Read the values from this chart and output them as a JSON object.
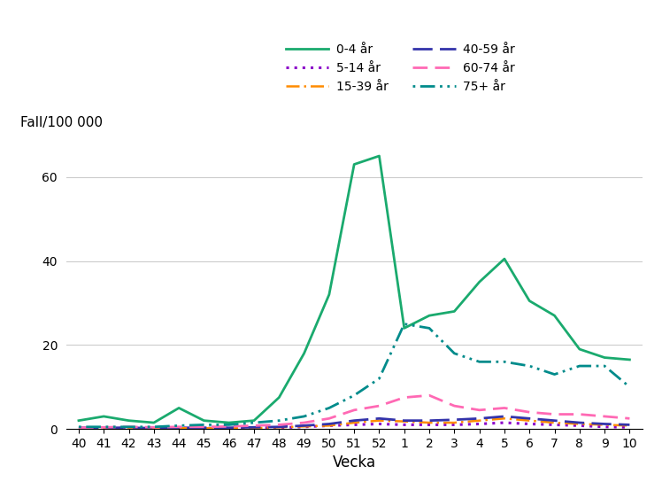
{
  "x_labels": [
    "40",
    "41",
    "42",
    "43",
    "44",
    "45",
    "46",
    "47",
    "48",
    "49",
    "50",
    "51",
    "52",
    "1",
    "2",
    "3",
    "4",
    "5",
    "6",
    "7",
    "8",
    "9",
    "10"
  ],
  "x_positions": [
    0,
    1,
    2,
    3,
    4,
    5,
    6,
    7,
    8,
    9,
    10,
    11,
    12,
    13,
    14,
    15,
    16,
    17,
    18,
    19,
    20,
    21,
    22
  ],
  "series": {
    "0-4 år": {
      "values": [
        2.0,
        3.0,
        2.0,
        1.5,
        5.0,
        2.0,
        1.5,
        2.0,
        7.5,
        18.0,
        32.0,
        63.0,
        65.0,
        24.0,
        27.0,
        28.0,
        35.0,
        40.5,
        30.5,
        27.0,
        19.0,
        17.0,
        16.5
      ],
      "color": "#1aaa6e",
      "linestyle": "solid",
      "linewidth": 2.0
    },
    "5-14 år": {
      "values": [
        0.2,
        0.2,
        0.2,
        0.1,
        0.3,
        0.2,
        0.2,
        0.3,
        0.3,
        0.5,
        0.8,
        1.0,
        1.2,
        1.0,
        1.0,
        1.0,
        1.2,
        1.5,
        1.2,
        1.0,
        0.8,
        0.5,
        0.4
      ],
      "color": "#8b00c9",
      "linestyle": "dotted",
      "linewidth": 2.2
    },
    "15-39 år": {
      "values": [
        0.2,
        0.2,
        0.2,
        0.1,
        0.2,
        0.2,
        0.2,
        0.2,
        0.4,
        0.6,
        0.8,
        1.5,
        2.0,
        1.8,
        1.5,
        1.5,
        2.0,
        2.5,
        2.0,
        1.5,
        1.2,
        1.0,
        0.8
      ],
      "color": "#ff8c00",
      "linestyle": "dashdot",
      "linewidth": 1.8
    },
    "40-59 år": {
      "values": [
        0.3,
        0.3,
        0.3,
        0.2,
        0.3,
        0.3,
        0.3,
        0.4,
        0.5,
        0.8,
        1.2,
        2.0,
        2.5,
        2.0,
        2.0,
        2.2,
        2.5,
        3.0,
        2.5,
        2.0,
        1.5,
        1.2,
        1.0
      ],
      "color": "#3333aa",
      "linestyle": "dashed",
      "linewidth": 2.0
    },
    "60-74 år": {
      "values": [
        0.3,
        0.4,
        0.5,
        0.4,
        0.5,
        0.5,
        0.6,
        0.8,
        1.0,
        1.5,
        2.5,
        4.5,
        5.5,
        7.5,
        8.0,
        5.5,
        4.5,
        5.0,
        4.0,
        3.5,
        3.5,
        3.0,
        2.5
      ],
      "color": "#ff69b4",
      "linestyle": "dashed",
      "linewidth": 2.0
    },
    "75+ år": {
      "values": [
        0.5,
        0.5,
        0.5,
        0.5,
        0.8,
        1.0,
        1.0,
        1.5,
        2.0,
        3.0,
        5.0,
        8.0,
        12.0,
        25.0,
        24.0,
        18.0,
        16.0,
        16.0,
        15.0,
        13.0,
        15.0,
        15.0,
        10.0
      ],
      "color": "#008b8b",
      "linestyle": "dashdot",
      "linewidth": 2.0
    }
  },
  "series_order": [
    "0-4 år",
    "5-14 år",
    "15-39 år",
    "40-59 år",
    "60-74 år",
    "75+ år"
  ],
  "legend_order": [
    "0-4 år",
    "5-14 år",
    "15-39 år",
    "40-59 år",
    "60-74 år",
    "75+ år"
  ],
  "ylabel": "Fall/100 000",
  "xlabel": "Vecka",
  "ylim": [
    0,
    70
  ],
  "yticks": [
    0,
    20,
    40,
    60
  ],
  "background_color": "#ffffff",
  "grid_color": "#cccccc"
}
